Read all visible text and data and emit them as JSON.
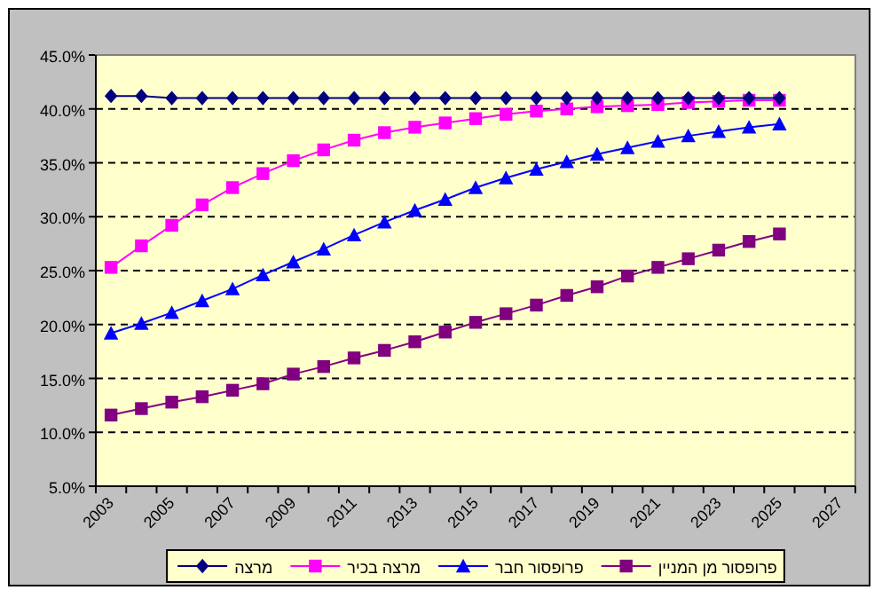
{
  "chart_data": {
    "type": "line",
    "categories": [
      "2003",
      null,
      "2005",
      null,
      "2007",
      null,
      "2009",
      null,
      "2011",
      null,
      "2013",
      null,
      "2015",
      null,
      "2017",
      null,
      "2019",
      null,
      "2021",
      null,
      "2023",
      null,
      "2025",
      null,
      "2027"
    ],
    "series": [
      {
        "name": "מרצה",
        "color": "#000080",
        "marker": "diamond",
        "values": [
          41.2,
          41.2,
          41.0,
          41.0,
          41.0,
          41.0,
          41.0,
          41.0,
          41.0,
          41.0,
          41.0,
          41.0,
          41.0,
          41.0,
          41.0,
          41.0,
          41.0,
          41.0,
          41.0,
          41.0,
          41.0,
          41.0,
          41.0,
          null,
          null
        ]
      },
      {
        "name": "מרצה בכיר",
        "color": "#ff00ff",
        "marker": "square",
        "values": [
          25.3,
          27.3,
          29.2,
          31.1,
          32.7,
          34.0,
          35.2,
          36.2,
          37.1,
          37.8,
          38.3,
          38.7,
          39.1,
          39.5,
          39.8,
          40.0,
          40.2,
          40.3,
          40.4,
          40.6,
          40.7,
          40.8,
          40.8,
          null,
          null
        ]
      },
      {
        "name": "פרופסור חבר",
        "color": "#0000ff",
        "marker": "triangle",
        "values": [
          19.2,
          20.1,
          21.1,
          22.2,
          23.3,
          24.6,
          25.8,
          27.0,
          28.3,
          29.5,
          30.6,
          31.6,
          32.7,
          33.6,
          34.4,
          35.1,
          35.8,
          36.4,
          37.0,
          37.5,
          37.9,
          38.3,
          38.6,
          null,
          null
        ]
      },
      {
        "name": "פרופסור מן המניין",
        "color": "#800080",
        "marker": "square",
        "values": [
          11.6,
          12.2,
          12.8,
          13.3,
          13.9,
          14.5,
          15.4,
          16.1,
          16.9,
          17.6,
          18.4,
          19.3,
          20.2,
          21.0,
          21.8,
          22.7,
          23.5,
          24.5,
          25.3,
          26.1,
          26.9,
          27.7,
          28.4,
          null,
          null
        ]
      }
    ],
    "ylim": [
      5,
      45
    ],
    "yticks": [
      {
        "value": 5,
        "label": "5.0%"
      },
      {
        "value": 10,
        "label": "10.0%"
      },
      {
        "value": 15,
        "label": "15.0%"
      },
      {
        "value": 20,
        "label": "20.0%"
      },
      {
        "value": 25,
        "label": "25.0%"
      },
      {
        "value": 30,
        "label": "30.0%"
      },
      {
        "value": 35,
        "label": "35.0%"
      },
      {
        "value": 40,
        "label": "40.0%"
      },
      {
        "value": 45,
        "label": "45.0%"
      }
    ],
    "grid": "y",
    "line_style": "solid",
    "legend": "bottom"
  }
}
